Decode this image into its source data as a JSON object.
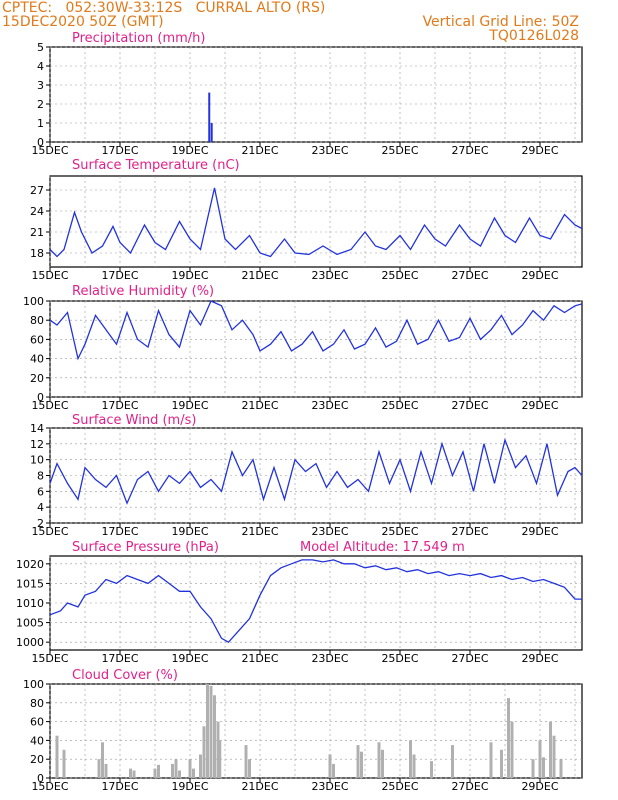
{
  "header": {
    "line1": "CPTEC:   052:30W-33:12S   CURRAL ALTO (RS)",
    "line2": "15DEC2020 50Z (GMT)",
    "right1": "Vertical Grid Line: 50Z",
    "right2": "TQ0126L028"
  },
  "colors": {
    "header": "#e07a1a",
    "title": "#e0218a",
    "line": "#2233dd",
    "cloud": "#b0b0b0"
  },
  "x_tick_labels": [
    "15DEC",
    "17DEC",
    "19DEC",
    "21DEC",
    "23DEC",
    "25DEC",
    "27DEC",
    "29DEC"
  ],
  "chart_data": [
    {
      "type": "bar",
      "title": "Precipitation (mm/h)",
      "ylim": [
        0,
        5
      ],
      "yticks": [
        0,
        1,
        2,
        3,
        4,
        5
      ],
      "x_unit": "days since 15DEC 00Z",
      "xlim": [
        0,
        15.2
      ],
      "values": [
        [
          4.55,
          2.6
        ],
        [
          4.62,
          1.0
        ]
      ],
      "grid": true
    },
    {
      "type": "line",
      "title": "Surface Temperature (nC)",
      "ylim": [
        16,
        29
      ],
      "yticks": [
        18,
        21,
        24,
        27
      ],
      "xlim": [
        0,
        15.2
      ],
      "values": [
        [
          0,
          18.5
        ],
        [
          0.2,
          17.5
        ],
        [
          0.4,
          18.5
        ],
        [
          0.7,
          23.8
        ],
        [
          0.9,
          21.0
        ],
        [
          1.2,
          18.0
        ],
        [
          1.5,
          19.0
        ],
        [
          1.8,
          21.8
        ],
        [
          2.0,
          19.5
        ],
        [
          2.3,
          18.0
        ],
        [
          2.7,
          22.0
        ],
        [
          3.0,
          19.5
        ],
        [
          3.3,
          18.5
        ],
        [
          3.7,
          22.5
        ],
        [
          4.0,
          20.0
        ],
        [
          4.3,
          18.5
        ],
        [
          4.7,
          27.3
        ],
        [
          5.0,
          20.0
        ],
        [
          5.3,
          18.5
        ],
        [
          5.7,
          20.5
        ],
        [
          6.0,
          18.0
        ],
        [
          6.3,
          17.5
        ],
        [
          6.7,
          20.0
        ],
        [
          7.0,
          18.0
        ],
        [
          7.4,
          17.8
        ],
        [
          7.8,
          19.0
        ],
        [
          8.2,
          17.8
        ],
        [
          8.6,
          18.5
        ],
        [
          9.0,
          21.0
        ],
        [
          9.3,
          19.0
        ],
        [
          9.6,
          18.5
        ],
        [
          10.0,
          20.5
        ],
        [
          10.3,
          18.5
        ],
        [
          10.7,
          22.0
        ],
        [
          11.0,
          20.0
        ],
        [
          11.3,
          19.0
        ],
        [
          11.7,
          22.0
        ],
        [
          12.0,
          20.0
        ],
        [
          12.3,
          19.0
        ],
        [
          12.7,
          23.0
        ],
        [
          13.0,
          20.5
        ],
        [
          13.3,
          19.5
        ],
        [
          13.7,
          23.0
        ],
        [
          14.0,
          20.5
        ],
        [
          14.3,
          20.0
        ],
        [
          14.7,
          23.5
        ],
        [
          15.0,
          22.0
        ],
        [
          15.2,
          21.5
        ]
      ],
      "grid": true
    },
    {
      "type": "line",
      "title": "Relative Humidity (%)",
      "ylim": [
        0,
        100
      ],
      "yticks": [
        0,
        20,
        40,
        60,
        80,
        100
      ],
      "xlim": [
        0,
        15.2
      ],
      "values": [
        [
          0,
          80
        ],
        [
          0.2,
          75
        ],
        [
          0.5,
          88
        ],
        [
          0.8,
          40
        ],
        [
          1.0,
          55
        ],
        [
          1.3,
          85
        ],
        [
          1.6,
          70
        ],
        [
          1.9,
          55
        ],
        [
          2.2,
          88
        ],
        [
          2.5,
          60
        ],
        [
          2.8,
          52
        ],
        [
          3.1,
          90
        ],
        [
          3.4,
          65
        ],
        [
          3.7,
          52
        ],
        [
          4.0,
          90
        ],
        [
          4.3,
          75
        ],
        [
          4.6,
          100
        ],
        [
          4.9,
          95
        ],
        [
          5.2,
          70
        ],
        [
          5.5,
          80
        ],
        [
          5.8,
          65
        ],
        [
          6.0,
          48
        ],
        [
          6.3,
          55
        ],
        [
          6.6,
          68
        ],
        [
          6.9,
          48
        ],
        [
          7.2,
          55
        ],
        [
          7.5,
          68
        ],
        [
          7.8,
          48
        ],
        [
          8.1,
          55
        ],
        [
          8.4,
          70
        ],
        [
          8.7,
          50
        ],
        [
          9.0,
          55
        ],
        [
          9.3,
          72
        ],
        [
          9.6,
          52
        ],
        [
          9.9,
          58
        ],
        [
          10.2,
          80
        ],
        [
          10.5,
          55
        ],
        [
          10.8,
          60
        ],
        [
          11.1,
          80
        ],
        [
          11.4,
          58
        ],
        [
          11.7,
          62
        ],
        [
          12.0,
          82
        ],
        [
          12.3,
          60
        ],
        [
          12.6,
          70
        ],
        [
          12.9,
          85
        ],
        [
          13.2,
          65
        ],
        [
          13.5,
          75
        ],
        [
          13.8,
          90
        ],
        [
          14.1,
          80
        ],
        [
          14.4,
          95
        ],
        [
          14.7,
          88
        ],
        [
          15.0,
          95
        ],
        [
          15.2,
          97
        ]
      ],
      "grid": true
    },
    {
      "type": "line",
      "title": "Surface Wind (m/s)",
      "ylim": [
        2,
        14
      ],
      "yticks": [
        2,
        4,
        6,
        8,
        10,
        12,
        14
      ],
      "xlim": [
        0,
        15.2
      ],
      "values": [
        [
          0,
          7
        ],
        [
          0.2,
          9.5
        ],
        [
          0.5,
          7
        ],
        [
          0.8,
          5
        ],
        [
          1.0,
          9
        ],
        [
          1.3,
          7.5
        ],
        [
          1.6,
          6.5
        ],
        [
          1.9,
          8
        ],
        [
          2.2,
          4.5
        ],
        [
          2.5,
          7.5
        ],
        [
          2.8,
          8.5
        ],
        [
          3.1,
          6
        ],
        [
          3.4,
          8
        ],
        [
          3.7,
          7
        ],
        [
          4.0,
          8.5
        ],
        [
          4.3,
          6.5
        ],
        [
          4.6,
          7.5
        ],
        [
          4.9,
          6
        ],
        [
          5.2,
          11
        ],
        [
          5.5,
          8
        ],
        [
          5.8,
          10
        ],
        [
          6.1,
          5
        ],
        [
          6.4,
          9
        ],
        [
          6.7,
          5
        ],
        [
          7.0,
          10
        ],
        [
          7.3,
          8.5
        ],
        [
          7.6,
          9.5
        ],
        [
          7.9,
          6.5
        ],
        [
          8.2,
          8.5
        ],
        [
          8.5,
          6.5
        ],
        [
          8.8,
          7.5
        ],
        [
          9.1,
          6
        ],
        [
          9.4,
          11
        ],
        [
          9.7,
          7
        ],
        [
          10.0,
          10
        ],
        [
          10.3,
          6
        ],
        [
          10.6,
          11
        ],
        [
          10.9,
          7
        ],
        [
          11.2,
          12
        ],
        [
          11.5,
          8
        ],
        [
          11.8,
          11
        ],
        [
          12.1,
          6
        ],
        [
          12.4,
          12
        ],
        [
          12.7,
          7
        ],
        [
          13.0,
          12.5
        ],
        [
          13.3,
          9
        ],
        [
          13.6,
          10.5
        ],
        [
          13.9,
          7
        ],
        [
          14.2,
          12
        ],
        [
          14.5,
          5.5
        ],
        [
          14.8,
          8.5
        ],
        [
          15.0,
          9
        ],
        [
          15.2,
          8
        ]
      ],
      "grid": true
    },
    {
      "type": "line",
      "title": "Surface Pressure (hPa)",
      "annotation": "Model Altitude: 17.549  m",
      "ylim": [
        998,
        1022
      ],
      "yticks": [
        1000,
        1005,
        1010,
        1015,
        1020
      ],
      "xlim": [
        0,
        15.2
      ],
      "values": [
        [
          0,
          1007
        ],
        [
          0.3,
          1008
        ],
        [
          0.5,
          1010
        ],
        [
          0.8,
          1009
        ],
        [
          1.0,
          1012
        ],
        [
          1.3,
          1013
        ],
        [
          1.6,
          1016
        ],
        [
          1.9,
          1015
        ],
        [
          2.2,
          1017
        ],
        [
          2.5,
          1016
        ],
        [
          2.8,
          1015
        ],
        [
          3.1,
          1017
        ],
        [
          3.4,
          1015
        ],
        [
          3.7,
          1013
        ],
        [
          4.0,
          1013
        ],
        [
          4.3,
          1009
        ],
        [
          4.6,
          1006
        ],
        [
          4.9,
          1001
        ],
        [
          5.1,
          1000
        ],
        [
          5.4,
          1003
        ],
        [
          5.7,
          1006
        ],
        [
          6.0,
          1012
        ],
        [
          6.3,
          1017
        ],
        [
          6.6,
          1019
        ],
        [
          6.9,
          1020
        ],
        [
          7.2,
          1021
        ],
        [
          7.5,
          1021
        ],
        [
          7.8,
          1020.5
        ],
        [
          8.1,
          1021
        ],
        [
          8.4,
          1020
        ],
        [
          8.7,
          1020
        ],
        [
          9.0,
          1019
        ],
        [
          9.3,
          1019.5
        ],
        [
          9.6,
          1018.5
        ],
        [
          9.9,
          1019
        ],
        [
          10.2,
          1018
        ],
        [
          10.5,
          1018.5
        ],
        [
          10.8,
          1017.5
        ],
        [
          11.1,
          1018
        ],
        [
          11.4,
          1017
        ],
        [
          11.7,
          1017.5
        ],
        [
          12.0,
          1017
        ],
        [
          12.3,
          1017.5
        ],
        [
          12.6,
          1016.5
        ],
        [
          12.9,
          1017
        ],
        [
          13.2,
          1016
        ],
        [
          13.5,
          1016.5
        ],
        [
          13.8,
          1015.5
        ],
        [
          14.1,
          1016
        ],
        [
          14.4,
          1015
        ],
        [
          14.7,
          1014
        ],
        [
          15.0,
          1011
        ],
        [
          15.2,
          1011
        ]
      ],
      "grid": true
    },
    {
      "type": "bar",
      "title": "Cloud Cover (%)",
      "ylim": [
        0,
        100
      ],
      "yticks": [
        0,
        20,
        40,
        60,
        80,
        100
      ],
      "xlim": [
        0,
        15.2
      ],
      "values": [
        [
          0.2,
          45
        ],
        [
          0.4,
          30
        ],
        [
          1.4,
          20
        ],
        [
          1.5,
          38
        ],
        [
          1.6,
          15
        ],
        [
          2.3,
          10
        ],
        [
          2.4,
          8
        ],
        [
          3.0,
          10
        ],
        [
          3.1,
          14
        ],
        [
          3.5,
          15
        ],
        [
          3.6,
          20
        ],
        [
          3.7,
          8
        ],
        [
          4.0,
          20
        ],
        [
          4.1,
          10
        ],
        [
          4.3,
          25
        ],
        [
          4.4,
          55
        ],
        [
          4.5,
          100
        ],
        [
          4.6,
          98
        ],
        [
          4.7,
          88
        ],
        [
          4.8,
          60
        ],
        [
          4.85,
          40
        ],
        [
          5.6,
          35
        ],
        [
          5.7,
          20
        ],
        [
          8.0,
          25
        ],
        [
          8.1,
          15
        ],
        [
          8.8,
          35
        ],
        [
          8.9,
          28
        ],
        [
          9.4,
          38
        ],
        [
          9.5,
          30
        ],
        [
          10.3,
          40
        ],
        [
          10.4,
          25
        ],
        [
          10.9,
          18
        ],
        [
          11.5,
          35
        ],
        [
          12.6,
          38
        ],
        [
          12.9,
          30
        ],
        [
          13.1,
          85
        ],
        [
          13.2,
          60
        ],
        [
          13.8,
          20
        ],
        [
          14.0,
          40
        ],
        [
          14.1,
          22
        ],
        [
          14.3,
          60
        ],
        [
          14.4,
          45
        ],
        [
          14.6,
          20
        ]
      ],
      "grid": true
    }
  ]
}
